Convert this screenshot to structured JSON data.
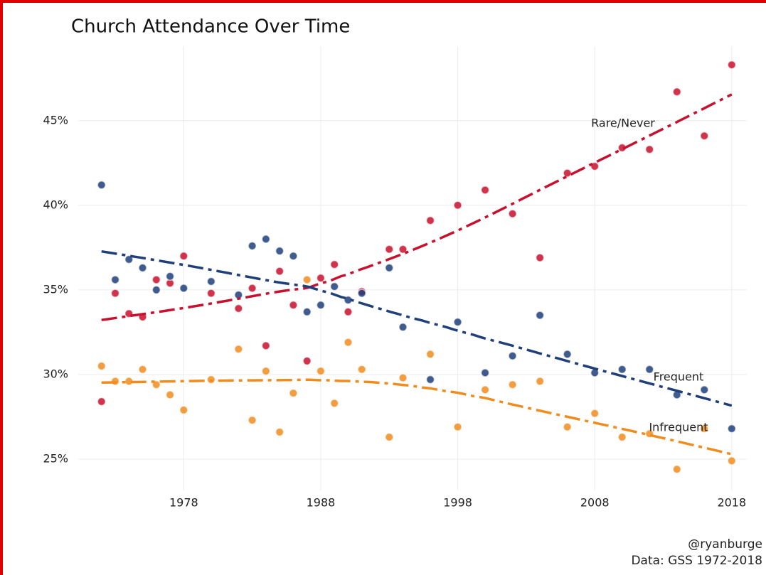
{
  "chart_data": {
    "type": "scatter",
    "title": "Church Attendance Over Time",
    "x": [
      1972,
      1973,
      1974,
      1975,
      1976,
      1977,
      1978,
      1980,
      1982,
      1983,
      1984,
      1985,
      1986,
      1987,
      1988,
      1989,
      1990,
      1991,
      1993,
      1994,
      1996,
      1998,
      2000,
      2002,
      2004,
      2006,
      2008,
      2010,
      2012,
      2014,
      2016,
      2018
    ],
    "series": [
      {
        "name": "Rare/Never",
        "color": "#c8102e",
        "values": [
          28.4,
          34.8,
          33.6,
          33.4,
          35.6,
          35.4,
          37.0,
          34.8,
          33.9,
          35.1,
          31.7,
          36.1,
          34.1,
          30.8,
          35.7,
          36.5,
          33.7,
          34.9,
          37.4,
          37.4,
          39.1,
          40.0,
          40.9,
          39.5,
          36.9,
          41.9,
          42.3,
          43.4,
          43.3,
          46.7,
          44.1,
          48.3
        ]
      },
      {
        "name": "Frequent",
        "color": "#1f3f7a",
        "values": [
          41.2,
          35.6,
          36.8,
          36.3,
          35.0,
          35.8,
          35.1,
          35.5,
          34.7,
          37.6,
          38.0,
          37.3,
          37.0,
          33.7,
          34.1,
          35.2,
          34.4,
          34.8,
          36.3,
          32.8,
          29.7,
          33.1,
          30.1,
          31.1,
          33.5,
          31.2,
          30.1,
          30.3,
          30.3,
          28.8,
          29.1,
          26.8
        ]
      },
      {
        "name": "Infrequent",
        "color": "#f08c1e",
        "values": [
          30.5,
          29.6,
          29.6,
          30.3,
          29.4,
          28.8,
          27.9,
          29.7,
          31.5,
          27.3,
          30.2,
          26.6,
          28.9,
          35.6,
          30.2,
          28.3,
          31.9,
          30.3,
          26.3,
          29.8,
          31.2,
          26.9,
          29.1,
          29.4,
          29.6,
          26.9,
          27.7,
          26.3,
          26.5,
          24.4,
          26.8,
          24.9
        ]
      }
    ],
    "xlim": [
      1970.3,
      2019.1
    ],
    "xticks": [
      1978,
      1988,
      1998,
      2008,
      2018
    ],
    "ylim": [
      23.15,
      49.4
    ],
    "yticks": [
      {
        "value": 25,
        "label": "25%"
      },
      {
        "value": 30,
        "label": "30%"
      },
      {
        "value": 35,
        "label": "35%"
      },
      {
        "value": 40,
        "label": "40%"
      },
      {
        "value": 45,
        "label": "45%"
      }
    ],
    "grid": true,
    "caption": [
      "@ryanburge",
      "Data: GSS 1972-2018"
    ]
  }
}
